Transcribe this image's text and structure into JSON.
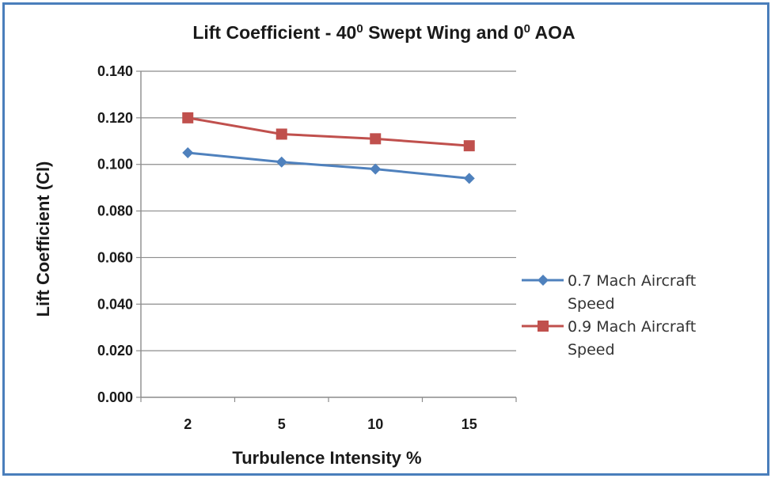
{
  "chart_data": {
    "type": "line",
    "title_parts": [
      "Lift Coefficient - 40",
      "0",
      " Swept Wing and 0",
      "0",
      " AOA"
    ],
    "xlabel": "Turbulence Intensity %",
    "ylabel": "Lift Coefficient (Cl)",
    "categories": [
      "2",
      "5",
      "10",
      "15"
    ],
    "ylim": [
      0,
      0.14
    ],
    "yticks": [
      "0.000",
      "0.020",
      "0.040",
      "0.060",
      "0.080",
      "0.100",
      "0.120",
      "0.140"
    ],
    "grid": true,
    "legend_position": "right",
    "series": [
      {
        "name_lines": [
          "0.7 Mach Aircraft",
          "Speed"
        ],
        "values": [
          0.105,
          0.101,
          0.098,
          0.094
        ],
        "color": "#4f81bd",
        "marker": "diamond"
      },
      {
        "name_lines": [
          "0.9 Mach Aircraft",
          "Speed"
        ],
        "values": [
          0.12,
          0.113,
          0.111,
          0.108
        ],
        "color": "#c0504d",
        "marker": "square"
      }
    ]
  }
}
